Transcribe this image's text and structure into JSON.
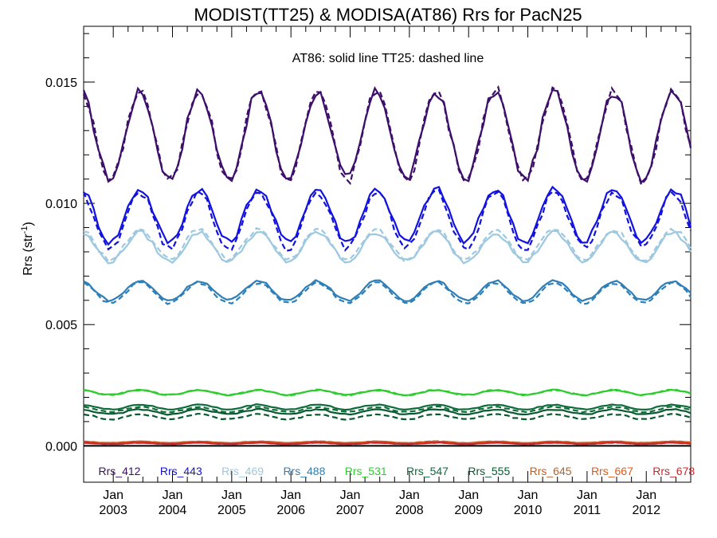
{
  "chart_data": {
    "type": "line",
    "title": "MODIST(TT25) & MODISA(AT86)  Rrs for PacN25",
    "ylabel": "Rrs (str",
    "ylabel_sup": "-1",
    "ylabel_close": ")",
    "annotation": "AT86: solid line   TT25: dashed line",
    "xlim": [
      2002.5,
      2012.75
    ],
    "ylim": [
      -0.0015,
      0.0173
    ],
    "yticks": [
      0.0,
      0.005,
      0.01,
      0.015
    ],
    "ytick_labels": [
      "0.000",
      "0.005",
      "0.010",
      "0.015"
    ],
    "xtick_month": "Jan",
    "xticks": [
      2003,
      2004,
      2005,
      2006,
      2007,
      2008,
      2009,
      2010,
      2011,
      2012
    ],
    "xtick_years": [
      "2003",
      "2004",
      "2005",
      "2006",
      "2007",
      "2008",
      "2009",
      "2010",
      "2011",
      "2012"
    ],
    "grid": false,
    "legend_position": "bottom inside plot",
    "series": [
      {
        "name": "Rrs_412",
        "color": "#3d0f6b",
        "base": 0.0128,
        "amp": 0.0018,
        "noise": 0.0004,
        "dashed_offset": 0.0
      },
      {
        "name": "Rrs_443",
        "color": "#1212e0",
        "base": 0.0095,
        "amp": 0.0011,
        "noise": 0.0003,
        "dashed_offset": -0.0002
      },
      {
        "name": "Rrs_469",
        "color": "#9cc8e0",
        "base": 0.0082,
        "amp": 0.0006,
        "noise": 0.0002,
        "dashed_offset": 0.0001
      },
      {
        "name": "Rrs_488",
        "color": "#2e7fb8",
        "base": 0.0064,
        "amp": 0.0004,
        "noise": 0.0001,
        "dashed_offset": -0.0001
      },
      {
        "name": "Rrs_531",
        "color": "#2fcc2f",
        "base": 0.0022,
        "amp": 0.0001,
        "noise": 5e-05,
        "dashed_offset": 0.0
      },
      {
        "name": "Rrs_547",
        "color": "#0f6b3a",
        "base": 0.0016,
        "amp": 0.0001,
        "noise": 5e-05,
        "dashed_offset": -0.0001
      },
      {
        "name": "Rrs_555",
        "color": "#0a5a30",
        "base": 0.0014,
        "amp": 0.0001,
        "noise": 5e-05,
        "dashed_offset": -0.0002
      },
      {
        "name": "Rrs_645",
        "color": "#b8602a",
        "base": 0.00015,
        "amp": 3e-05,
        "noise": 2e-05,
        "dashed_offset": 0.0
      },
      {
        "name": "Rrs_667",
        "color": "#e05a1a",
        "base": 0.00012,
        "amp": 3e-05,
        "noise": 2e-05,
        "dashed_offset": 0.0
      },
      {
        "name": "Rrs_678",
        "color": "#c8282a",
        "base": 0.0001,
        "amp": 3e-05,
        "noise": 2e-05,
        "dashed_offset": 0.0
      }
    ]
  }
}
